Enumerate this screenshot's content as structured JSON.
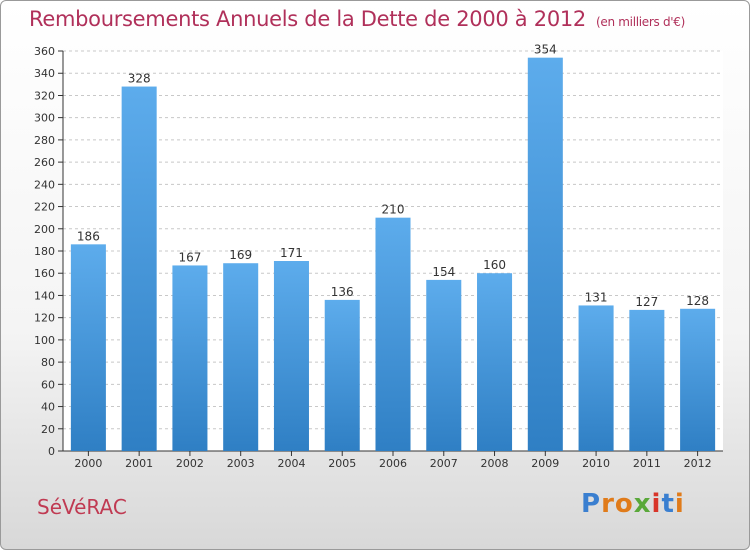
{
  "title": "Remboursements Annuels de la Dette de 2000 à 2012",
  "subtitle": "(en milliers d'€)",
  "commune": "SéVéRAC",
  "logo": {
    "text": "Proxiti",
    "letters": [
      {
        "char": "P",
        "color": "#3a7fd0"
      },
      {
        "char": "r",
        "color": "#e07b1a"
      },
      {
        "char": "o",
        "color": "#e07b1a"
      },
      {
        "char": "x",
        "color": "#5aa83a"
      },
      {
        "char": "i",
        "color": "#d8352a"
      },
      {
        "char": "t",
        "color": "#3a7fd0"
      },
      {
        "char": "i",
        "color": "#e07b1a"
      }
    ]
  },
  "colors": {
    "bar_light": "#5dacec",
    "bar_dark": "#2f7fc4",
    "grid": "#c8c8c8",
    "axis": "#333333",
    "title": "#b0305a"
  },
  "chart_data": {
    "type": "bar",
    "title": "Remboursements Annuels de la Dette de 2000 à 2012",
    "ylabel": "en milliers d'€",
    "xlabel": "",
    "categories": [
      "2000",
      "2001",
      "2002",
      "2003",
      "2004",
      "2005",
      "2006",
      "2007",
      "2008",
      "2009",
      "2010",
      "2011",
      "2012"
    ],
    "values": [
      186,
      328,
      167,
      169,
      171,
      136,
      210,
      154,
      160,
      354,
      131,
      127,
      128
    ],
    "ylim": [
      0,
      360
    ],
    "ytick_step": 20,
    "grid": true,
    "data_labels": true
  }
}
